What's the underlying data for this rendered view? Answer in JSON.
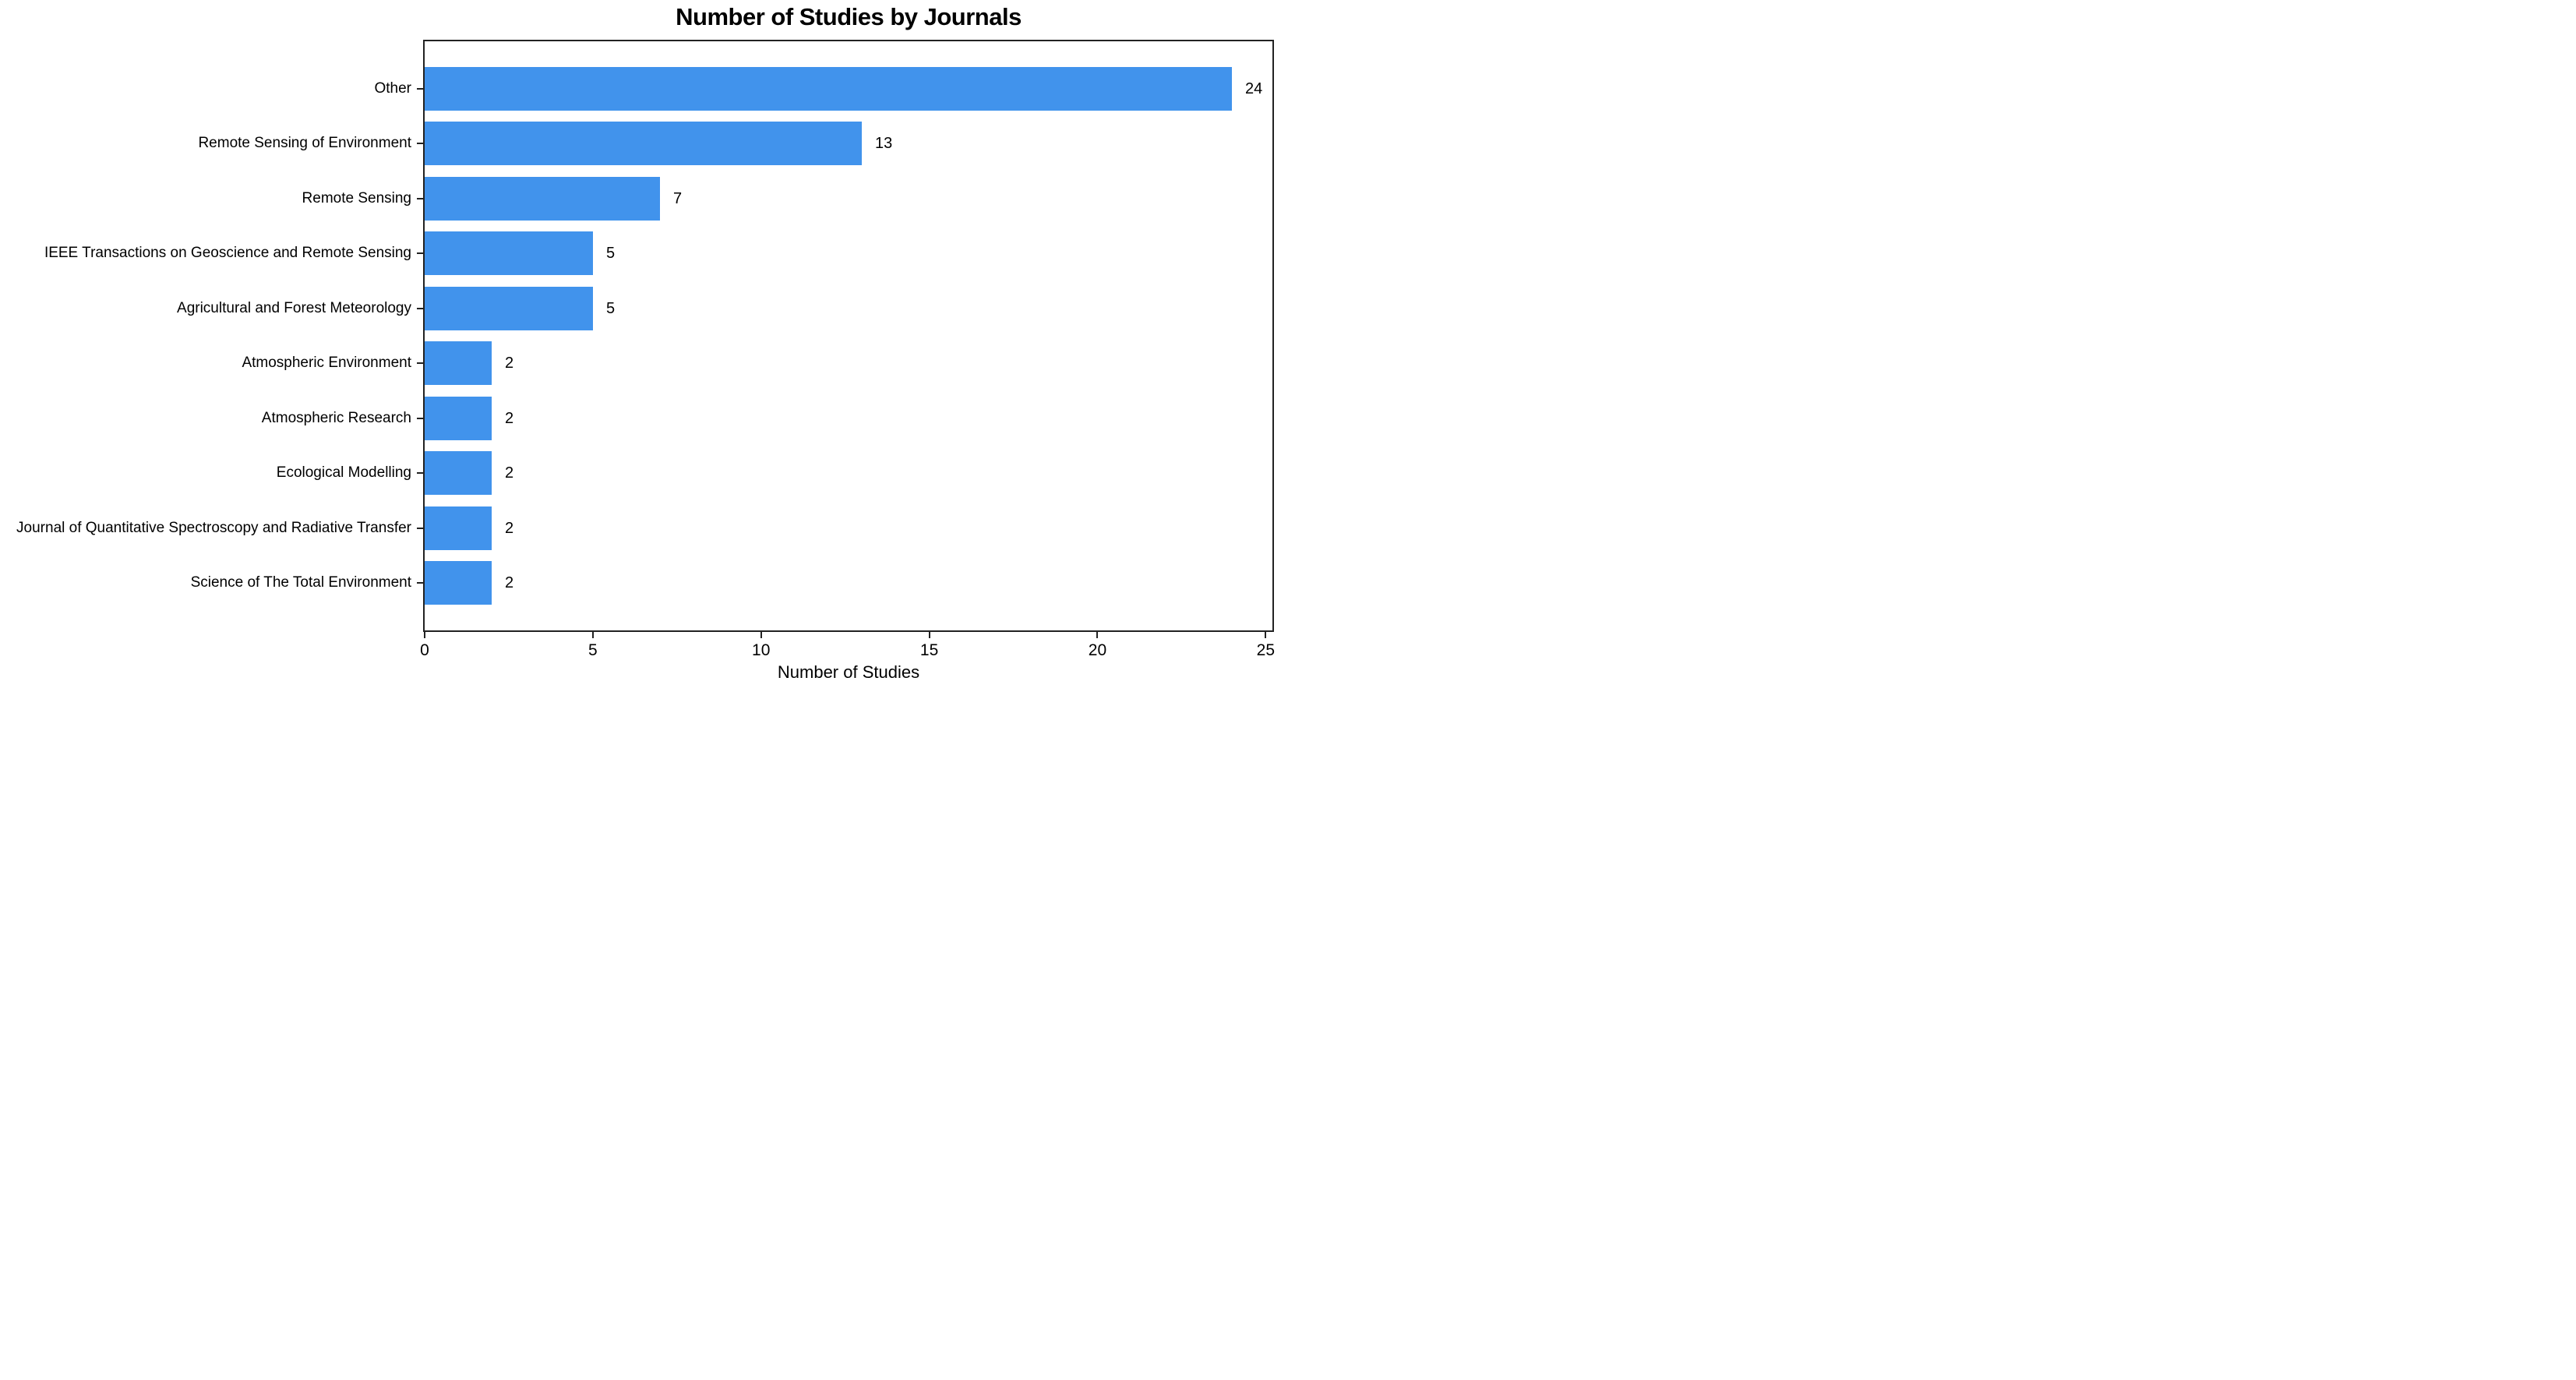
{
  "chart_data": {
    "type": "bar",
    "orientation": "horizontal",
    "title": "Number of Studies by Journals",
    "xlabel": "Number of Studies",
    "ylabel": "",
    "categories": [
      "Other",
      "Remote Sensing of Environment",
      "Remote Sensing",
      "IEEE Transactions on Geoscience and Remote Sensing",
      "Agricultural and Forest Meteorology",
      "Atmospheric Environment",
      "Atmospheric Research",
      "Ecological Modelling",
      "Journal of Quantitative Spectroscopy and Radiative Transfer",
      "Science of The Total Environment"
    ],
    "values": [
      24,
      13,
      7,
      5,
      5,
      2,
      2,
      2,
      2,
      2
    ],
    "value_labels": [
      "24",
      "13",
      "7",
      "5",
      "5",
      "2",
      "2",
      "2",
      "2",
      "2"
    ],
    "xticks": [
      0,
      5,
      10,
      15,
      20,
      25
    ],
    "xtick_labels": [
      "0",
      "5",
      "10",
      "15",
      "20",
      "25"
    ],
    "xlim": [
      0,
      25.2
    ],
    "bar_color": "#4193ec",
    "spine_color": "#222222",
    "text_color": "#000000",
    "grid": false,
    "legend": null,
    "value_labels_shown": true
  }
}
